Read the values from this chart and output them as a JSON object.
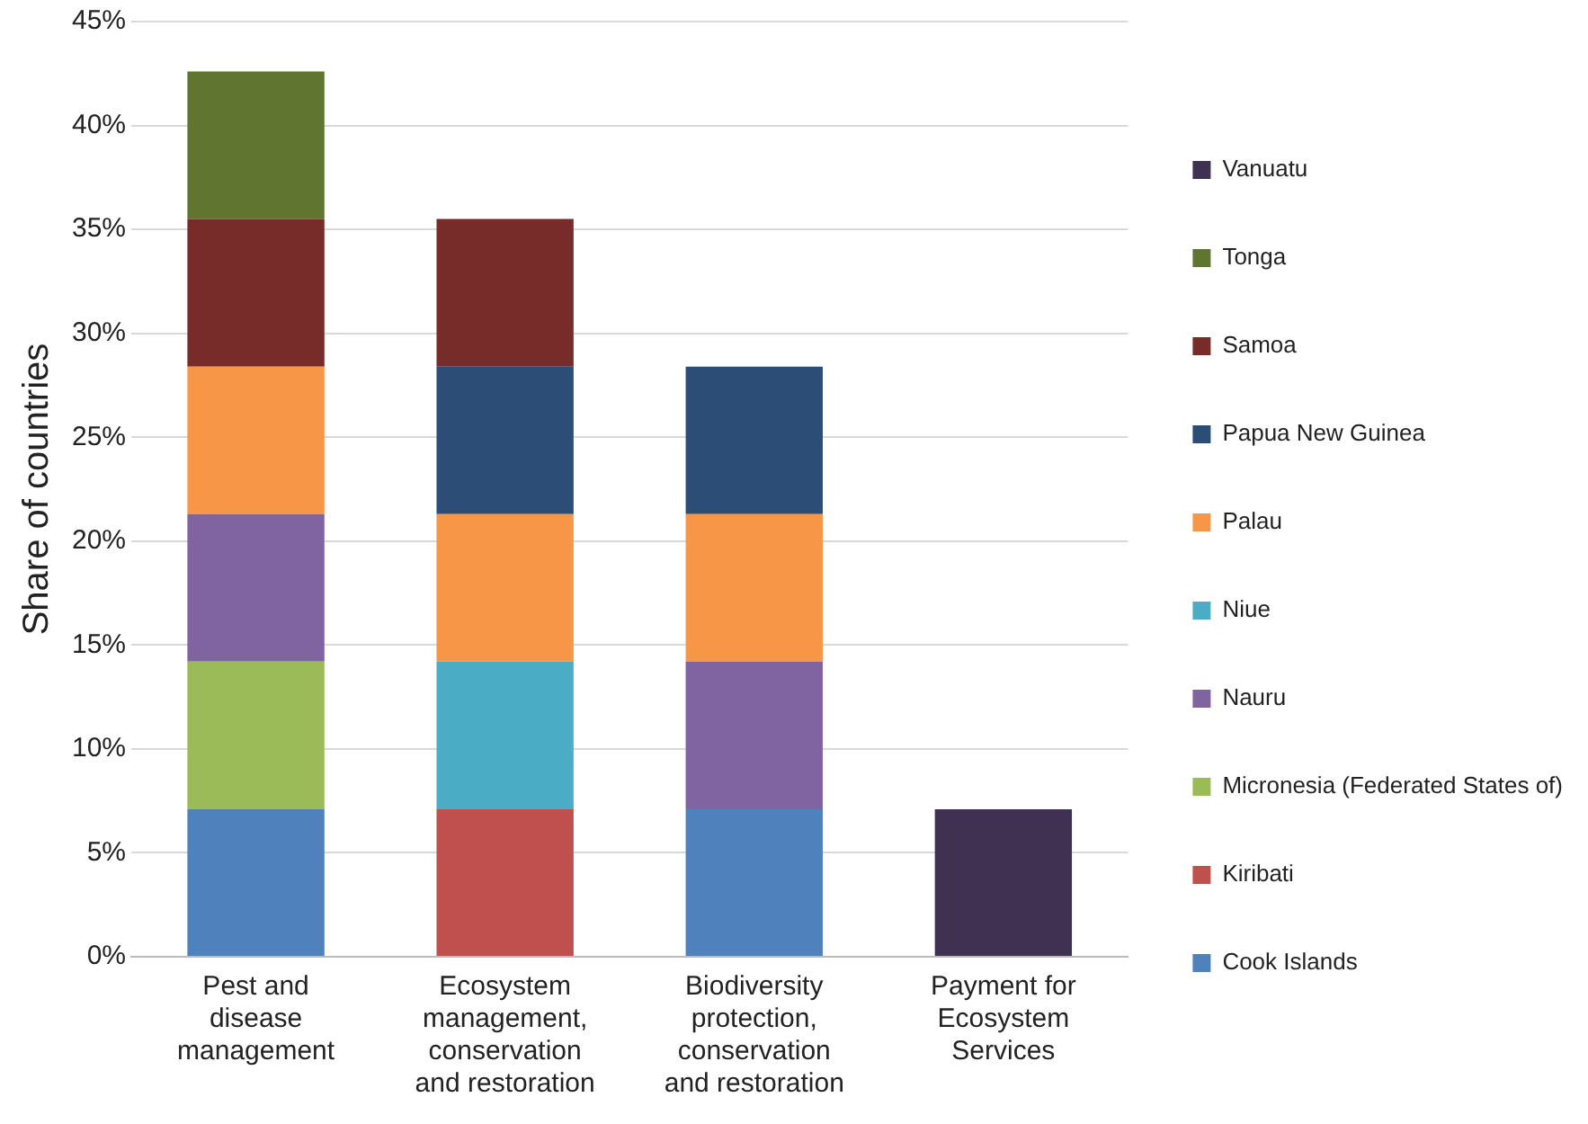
{
  "chart_data": {
    "type": "bar",
    "stacked": true,
    "ylabel": "Share of countries",
    "categories": [
      "Pest and disease management",
      "Ecosystem management, conservation and restoration",
      "Biodiversity protection, conservation and restoration",
      "Payment for Ecosystem Services"
    ],
    "series": [
      {
        "name": "Cook Islands",
        "color": "#4f81bd",
        "values": [
          7.1,
          null,
          7.1,
          null
        ]
      },
      {
        "name": "Kiribati",
        "color": "#c0504d",
        "values": [
          null,
          7.1,
          null,
          null
        ]
      },
      {
        "name": "Micronesia (Federated States of)",
        "color": "#9bbb59",
        "values": [
          7.1,
          null,
          null,
          null
        ]
      },
      {
        "name": "Nauru",
        "color": "#8064a2",
        "values": [
          7.1,
          null,
          7.1,
          null
        ]
      },
      {
        "name": "Niue",
        "color": "#4bacc6",
        "values": [
          null,
          7.1,
          null,
          null
        ]
      },
      {
        "name": "Palau",
        "color": "#f79646",
        "values": [
          7.1,
          7.1,
          7.1,
          null
        ]
      },
      {
        "name": "Papua New Guinea",
        "color": "#2c4d75",
        "values": [
          null,
          7.1,
          7.1,
          null
        ]
      },
      {
        "name": "Samoa",
        "color": "#772c2a",
        "values": [
          7.1,
          7.1,
          null,
          null
        ]
      },
      {
        "name": "Tonga",
        "color": "#5f7530",
        "values": [
          7.1,
          null,
          null,
          null
        ]
      },
      {
        "name": "Vanuatu",
        "color": "#403152",
        "values": [
          null,
          null,
          null,
          7.1
        ]
      }
    ],
    "ylim": [
      0,
      45
    ],
    "yticks": [
      {
        "value": 0,
        "label": "0%"
      },
      {
        "value": 5,
        "label": "5%"
      },
      {
        "value": 10,
        "label": "10%"
      },
      {
        "value": 15,
        "label": "15%"
      },
      {
        "value": 20,
        "label": "20%"
      },
      {
        "value": 25,
        "label": "25%"
      },
      {
        "value": 30,
        "label": "30%"
      },
      {
        "value": 35,
        "label": "35%"
      },
      {
        "value": 40,
        "label": "40%"
      },
      {
        "value": 45,
        "label": "45%"
      }
    ],
    "grid": "y",
    "legend": "right"
  }
}
